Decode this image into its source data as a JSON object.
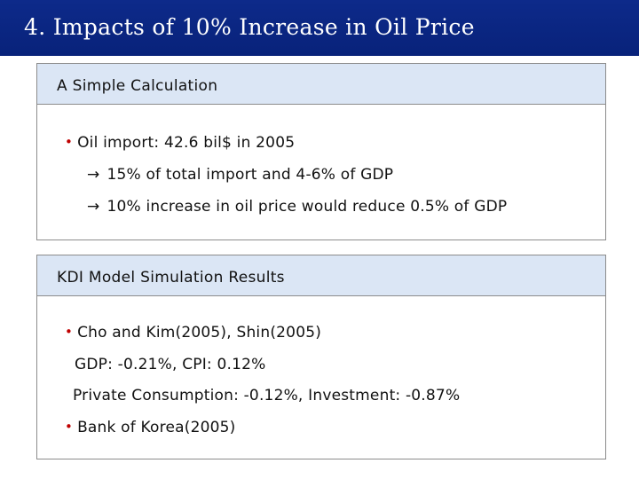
{
  "slide": {
    "title": "4. Impacts of 10% Increase in Oil Price"
  },
  "panel1": {
    "header": "A Simple Calculation",
    "items": [
      {
        "type": "bullet",
        "text": "Oil import: 42.6 bil$ in 2005"
      },
      {
        "type": "arrow",
        "text": "15% of total import and 4-6% of GDP"
      },
      {
        "type": "arrow",
        "text": "10% increase in oil price would reduce 0.5% of GDP"
      }
    ]
  },
  "panel2": {
    "header": "KDI Model Simulation Results",
    "items": [
      {
        "type": "bullet",
        "text": "Cho and Kim(2005), Shin(2005)"
      },
      {
        "type": "plain",
        "text": "GDP: -0.21%, CPI: 0.12%"
      },
      {
        "type": "plain",
        "text": "Private Consumption: -0.12%, Investment: -0.87%"
      },
      {
        "type": "bullet",
        "text": "Bank of Korea(2005)"
      }
    ]
  },
  "glyphs": {
    "bullet": "•",
    "arrow": "→"
  },
  "colors": {
    "title_bar": "#0d2a8a",
    "panel_header": "#dbe6f5",
    "bullet": "#c00000"
  }
}
